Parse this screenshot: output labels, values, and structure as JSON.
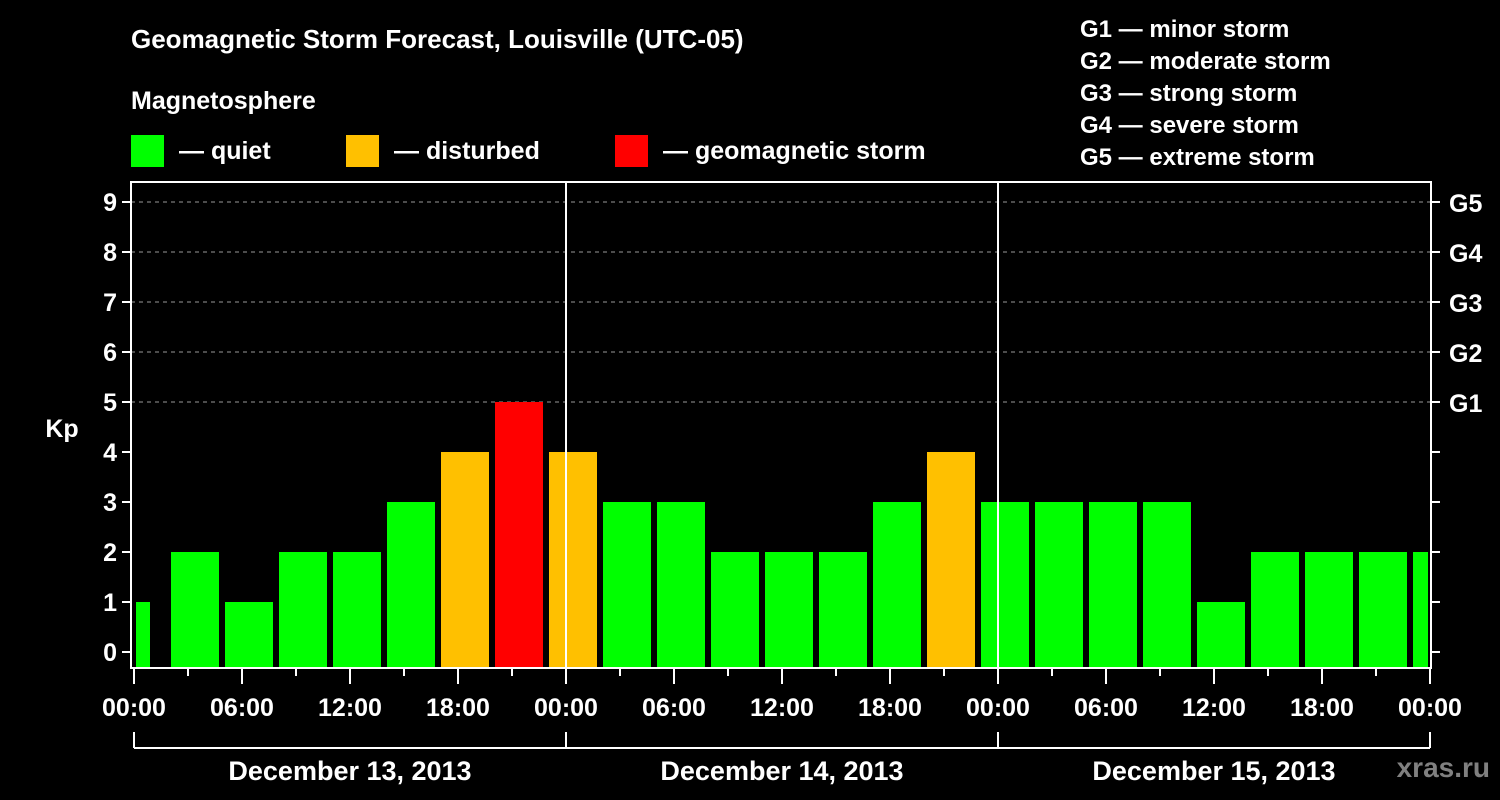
{
  "header": {
    "title": "Geomagnetic Storm Forecast, Louisville (UTC-05)",
    "section_label": "Magnetosphere"
  },
  "legend": [
    {
      "label": "— quiet",
      "color": "#00FF00"
    },
    {
      "label": "— disturbed",
      "color": "#FFC000"
    },
    {
      "label": "— geomagnetic storm",
      "color": "#FF0000"
    }
  ],
  "g_scale": [
    "G1 — minor storm",
    "G2 — moderate storm",
    "G3 — strong storm",
    "G4 — severe storm",
    "G5 — extreme storm"
  ],
  "watermark": "xras.ru",
  "chart_data": {
    "type": "bar",
    "title": "Geomagnetic Storm Forecast, Louisville (UTC-05)",
    "ylabel": "Kp",
    "xlabel": "",
    "ylim": [
      0,
      9
    ],
    "yticks": [
      0,
      1,
      2,
      3,
      4,
      5,
      6,
      7,
      8,
      9
    ],
    "right_axis_labels": [
      {
        "kp": 5,
        "label": "G1"
      },
      {
        "kp": 6,
        "label": "G2"
      },
      {
        "kp": 7,
        "label": "G3"
      },
      {
        "kp": 8,
        "label": "G4"
      },
      {
        "kp": 9,
        "label": "G5"
      }
    ],
    "grid": "dashed horizontal at Kp 5-9",
    "x_tick_labels": [
      "00:00",
      "06:00",
      "12:00",
      "18:00",
      "00:00",
      "06:00",
      "12:00",
      "18:00",
      "00:00",
      "06:00",
      "12:00",
      "18:00",
      "00:00"
    ],
    "days": [
      "December 13, 2013",
      "December 14, 2013",
      "December 15, 2013"
    ],
    "categories": [
      "Dec 13 00:00",
      "Dec 13 02:00",
      "Dec 13 05:00",
      "Dec 13 08:00",
      "Dec 13 11:00",
      "Dec 13 14:00",
      "Dec 13 17:00",
      "Dec 13 20:00",
      "Dec 13 23:00",
      "Dec 14 02:00",
      "Dec 14 05:00",
      "Dec 14 08:00",
      "Dec 14 11:00",
      "Dec 14 14:00",
      "Dec 14 17:00",
      "Dec 14 20:00",
      "Dec 14 23:00",
      "Dec 15 02:00",
      "Dec 15 05:00",
      "Dec 15 08:00",
      "Dec 15 11:00",
      "Dec 15 14:00",
      "Dec 15 17:00",
      "Dec 15 20:00",
      "Dec 15 23:00"
    ],
    "values": [
      1,
      2,
      1,
      2,
      2,
      3,
      4,
      5,
      4,
      3,
      3,
      2,
      2,
      2,
      3,
      4,
      3,
      3,
      3,
      3,
      1,
      2,
      2,
      2,
      2
    ],
    "bar_colors": [
      "quiet",
      "quiet",
      "quiet",
      "quiet",
      "quiet",
      "quiet",
      "disturbed",
      "storm",
      "disturbed",
      "quiet",
      "quiet",
      "quiet",
      "quiet",
      "quiet",
      "quiet",
      "disturbed",
      "quiet",
      "quiet",
      "quiet",
      "quiet",
      "quiet",
      "quiet",
      "quiet",
      "quiet",
      "quiet"
    ],
    "color_map": {
      "quiet": "#00FF00",
      "disturbed": "#FFC000",
      "storm": "#FF0000"
    }
  }
}
